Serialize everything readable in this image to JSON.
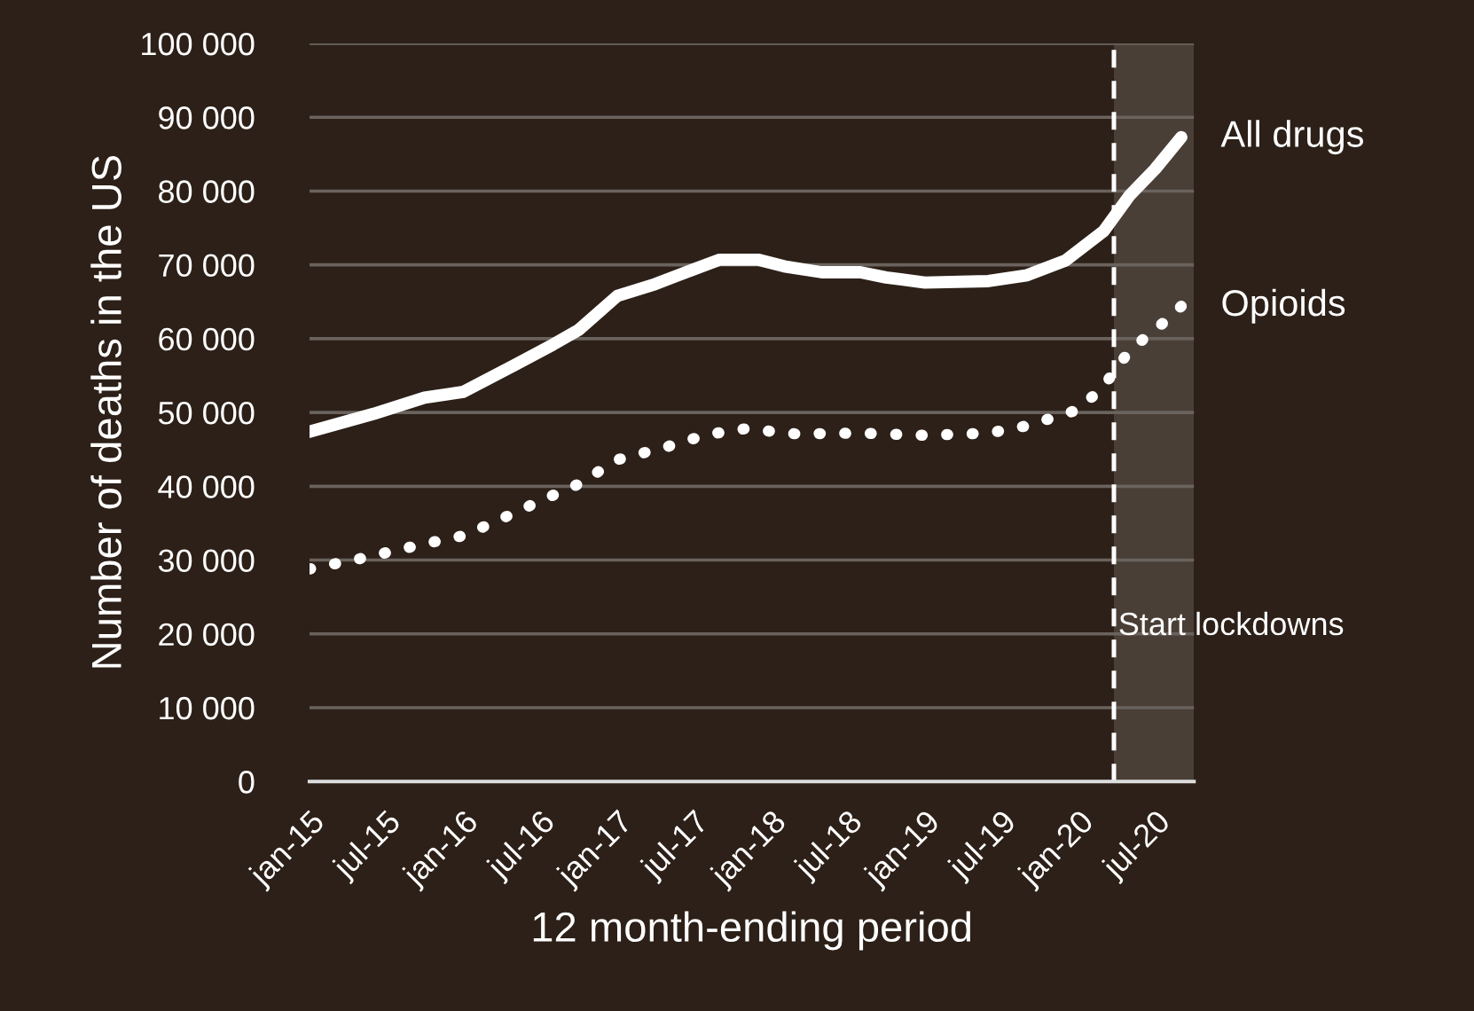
{
  "chart_data": {
    "type": "line",
    "xlabel": "12 month-ending period",
    "ylabel": "Number of deaths in the US",
    "series": [
      {
        "name": "All drugs",
        "color": "#ffffff",
        "line_style": "solid",
        "x": [
          "2015-01",
          "2015-06",
          "2015-10",
          "2016-01",
          "2016-05",
          "2016-08",
          "2016-10",
          "2017-01",
          "2017-04",
          "2017-07",
          "2017-09",
          "2017-12",
          "2018-02",
          "2018-05",
          "2018-08",
          "2018-10",
          "2019-01",
          "2019-06",
          "2019-09",
          "2019-12",
          "2020-03",
          "2020-05",
          "2020-07",
          "2020-09"
        ],
        "values": [
          47400,
          49800,
          52000,
          52800,
          56400,
          59200,
          61200,
          65800,
          67400,
          69400,
          70700,
          70700,
          69800,
          69000,
          69000,
          68300,
          67600,
          67800,
          68600,
          70600,
          74600,
          79400,
          83000,
          87300
        ]
      },
      {
        "name": "Opioids",
        "color": "#ffffff",
        "line_style": "dotted",
        "x": [
          "2015-01",
          "2015-05",
          "2015-10",
          "2016-01",
          "2016-04",
          "2016-07",
          "2016-10",
          "2017-01",
          "2017-05",
          "2017-08",
          "2017-11",
          "2018-03",
          "2018-08",
          "2019-01",
          "2019-06",
          "2019-09",
          "2020-01",
          "2020-03",
          "2020-05",
          "2020-08",
          "2020-09"
        ],
        "values": [
          28800,
          30200,
          32200,
          33300,
          35600,
          38000,
          40300,
          43600,
          45400,
          47000,
          47800,
          47100,
          47200,
          46900,
          47200,
          48200,
          50400,
          53600,
          58400,
          62700,
          64400
        ]
      }
    ],
    "xlim": [
      "2015-01",
      "2020-10"
    ],
    "xticks": [
      {
        "value": "2015-01",
        "label": "jan-15"
      },
      {
        "value": "2015-07",
        "label": "jul-15"
      },
      {
        "value": "2016-01",
        "label": "jan-16"
      },
      {
        "value": "2016-07",
        "label": "jul-16"
      },
      {
        "value": "2017-01",
        "label": "jan-17"
      },
      {
        "value": "2017-07",
        "label": "jul-17"
      },
      {
        "value": "2018-01",
        "label": "jan-18"
      },
      {
        "value": "2018-07",
        "label": "jul-18"
      },
      {
        "value": "2019-01",
        "label": "jan-19"
      },
      {
        "value": "2019-07",
        "label": "jul-19"
      },
      {
        "value": "2020-01",
        "label": "jan-20"
      },
      {
        "value": "2020-07",
        "label": "jul-20"
      }
    ],
    "ylim": [
      0,
      100000
    ],
    "yticks": [
      0,
      {
        "value": 10000,
        "label": "10 000"
      },
      {
        "value": 20000,
        "label": "20 000"
      },
      {
        "value": 30000,
        "label": "30 000"
      },
      {
        "value": 40000,
        "label": "40 000"
      },
      {
        "value": 50000,
        "label": "50 000"
      },
      {
        "value": 60000,
        "label": "60 000"
      },
      {
        "value": 70000,
        "label": "70 000"
      },
      {
        "value": 80000,
        "label": "80 000"
      },
      {
        "value": 90000,
        "label": "90 000"
      },
      {
        "value": 100000,
        "label": "100 000"
      }
    ],
    "ref_lines": [
      {
        "axis": "x",
        "value": "2020-03-25",
        "label": "Start lockdowns",
        "color": "#ffffff",
        "line_style": "dashed"
      }
    ],
    "bands": [
      {
        "axis": "x",
        "from": "2020-03-25",
        "to": "2020-10",
        "color": "#4a3f37"
      }
    ],
    "grid": "y",
    "legend": false,
    "marker": "none"
  }
}
